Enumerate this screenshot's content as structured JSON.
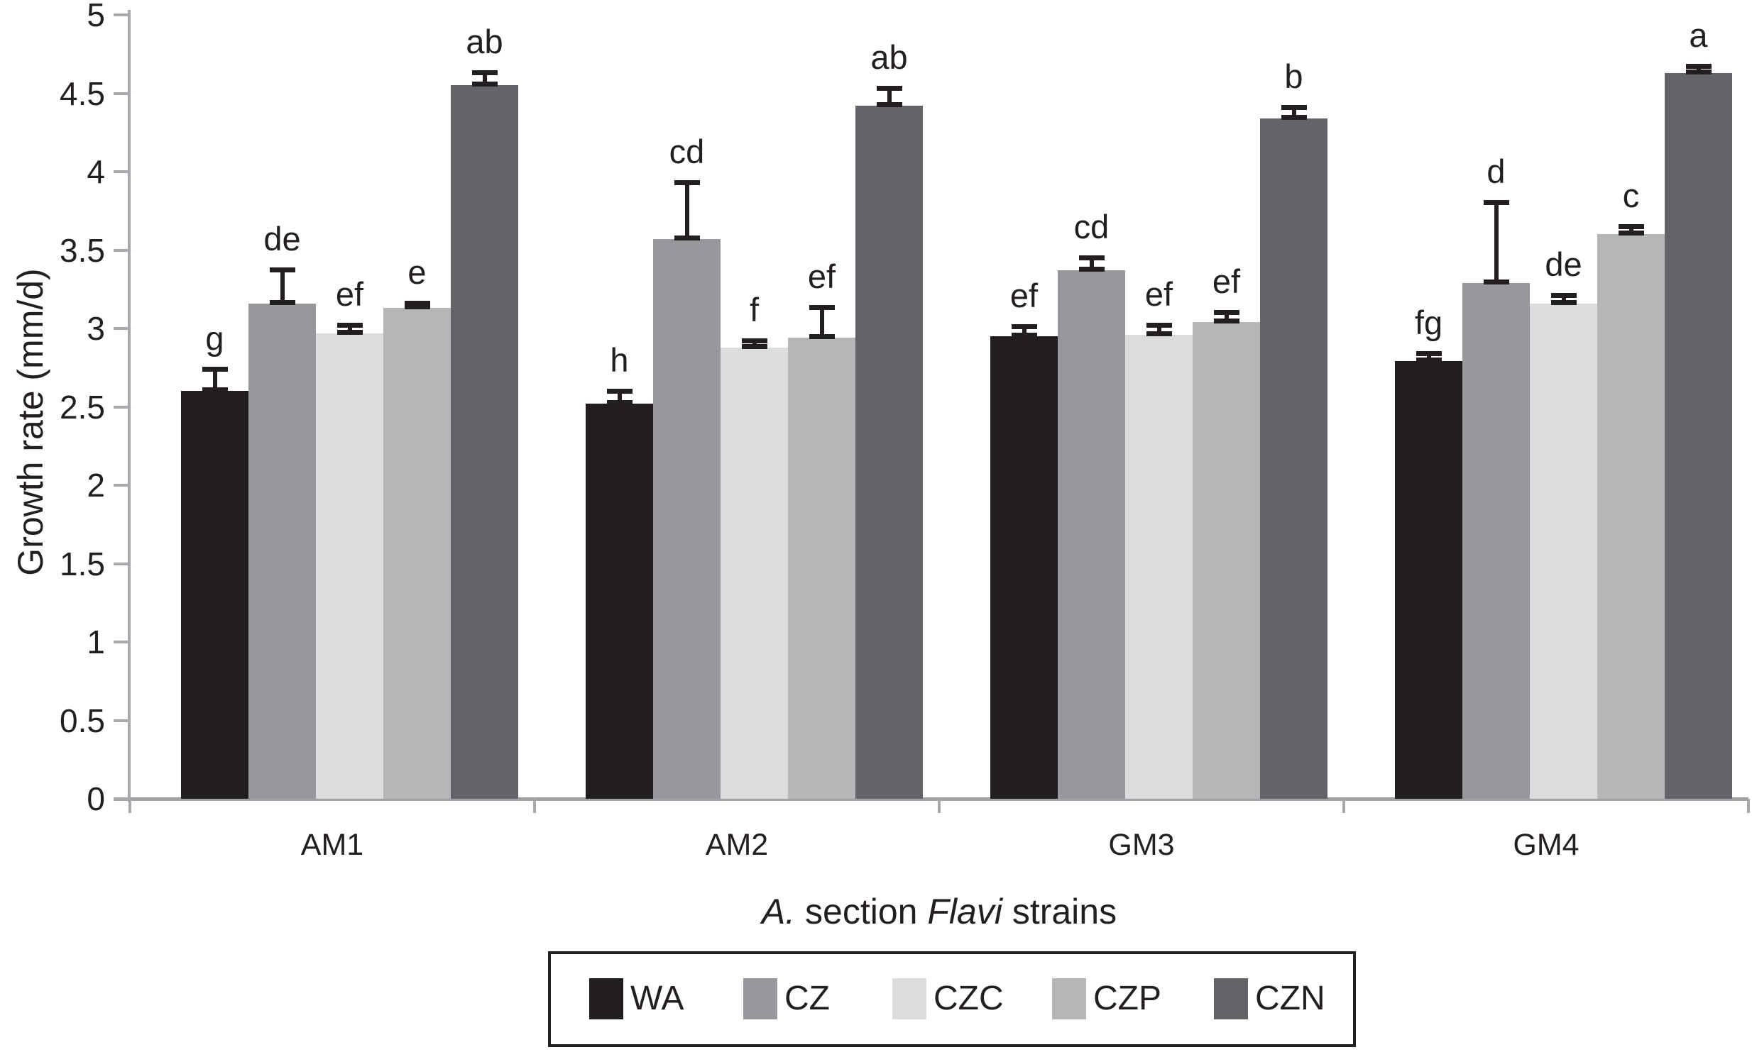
{
  "figure": {
    "background": "#ffffff",
    "axis_color": "#a7a9ac",
    "text_color": "#231f20"
  },
  "chart_data": {
    "type": "bar",
    "title": "",
    "ylabel": "Growth rate (mm/d)",
    "xlabel_plain": "A. section Flavi strains",
    "xlabel_segments": [
      {
        "text": "A.",
        "italic": true
      },
      {
        "text": " section ",
        "italic": false
      },
      {
        "text": "Flavi",
        "italic": true
      },
      {
        "text": " strains",
        "italic": false
      }
    ],
    "ylim": [
      0,
      5
    ],
    "ytick_step": 0.5,
    "ytick_labels": [
      "0",
      "0.5",
      "1",
      "1.5",
      "2",
      "2.5",
      "3",
      "3.5",
      "4",
      "4.5",
      "5"
    ],
    "grid": false,
    "error_bars": "plus-direction",
    "legend_position": "bottom-boxed",
    "categories": [
      "AM1",
      "AM2",
      "GM3",
      "GM4"
    ],
    "series": [
      {
        "name": "WA",
        "color": "#221e1f",
        "values": [
          2.6,
          2.52,
          2.95,
          2.79
        ],
        "errors_plus": [
          0.13,
          0.07,
          0.05,
          0.04
        ],
        "sig_labels": [
          "g",
          "h",
          "ef",
          "fg"
        ]
      },
      {
        "name": "CZ",
        "color": "#96989b",
        "values": [
          3.16,
          3.57,
          3.37,
          3.29
        ],
        "errors_plus": [
          0.2,
          0.35,
          0.07,
          0.5
        ],
        "sig_labels": [
          "de",
          "cd",
          "cd",
          "d"
        ]
      },
      {
        "name": "CZC",
        "color": "#dbdcde",
        "values": [
          2.97,
          2.88,
          2.96,
          3.16
        ],
        "errors_plus": [
          0.04,
          0.03,
          0.05,
          0.04
        ],
        "sig_labels": [
          "ef",
          "f",
          "ef",
          "de"
        ]
      },
      {
        "name": "CZP",
        "color": "#b4b6b8",
        "values": [
          3.13,
          2.94,
          3.04,
          3.6
        ],
        "errors_plus": [
          0.02,
          0.18,
          0.05,
          0.04
        ],
        "sig_labels": [
          "e",
          "ef",
          "ef",
          "c"
        ]
      },
      {
        "name": "CZN",
        "color": "#626467",
        "values": [
          4.55,
          4.42,
          4.34,
          4.63
        ],
        "errors_plus": [
          0.07,
          0.1,
          0.06,
          0.03
        ],
        "sig_labels": [
          "ab",
          "ab",
          "b",
          "a"
        ]
      }
    ]
  }
}
